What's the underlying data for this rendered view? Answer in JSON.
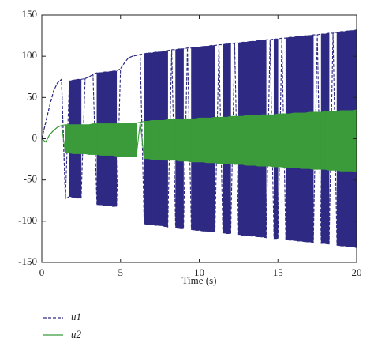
{
  "chart_data": {
    "type": "band-line",
    "xlabel": "Time (s)",
    "legend": "below",
    "xlim": [
      0,
      20
    ],
    "xticks": [
      0,
      5,
      10,
      15,
      20
    ],
    "ylim": [
      -150,
      150
    ],
    "yticks": [
      -150,
      -100,
      -50,
      0,
      50,
      100,
      150
    ],
    "x": [
      0,
      0.25,
      0.5,
      0.75,
      1,
      1.25,
      1.5,
      1.75,
      2,
      2.25,
      2.5,
      2.75,
      3,
      3.25,
      3.5,
      3.75,
      4,
      4.25,
      4.5,
      4.75,
      5,
      5.25,
      5.5,
      5.75,
      6,
      6.25,
      6.5,
      6.75,
      7,
      7.25,
      7.5,
      7.75,
      8,
      8.25,
      8.5,
      8.75,
      9,
      9.25,
      9.5,
      9.75,
      10,
      10.25,
      10.5,
      10.75,
      11,
      11.25,
      11.5,
      11.75,
      12,
      12.25,
      12.5,
      12.75,
      13,
      13.25,
      13.5,
      13.75,
      14,
      14.25,
      14.5,
      14.75,
      15,
      15.25,
      15.5,
      15.75,
      16,
      16.25,
      16.5,
      16.75,
      17,
      17.25,
      17.5,
      17.75,
      18,
      18.25,
      18.5,
      18.75,
      19,
      19.25,
      19.5,
      19.75,
      20
    ],
    "series": [
      {
        "name": "u1",
        "color": "#2e2a84",
        "dashed": true,
        "upper": [
          0,
          20,
          40,
          58,
          68,
          72,
          -73,
          70,
          71,
          72,
          72,
          73,
          75,
          78,
          80,
          80,
          81,
          81,
          82,
          82,
          85,
          92,
          98,
          100,
          101,
          102,
          103,
          104,
          104,
          105,
          105,
          106,
          107,
          108,
          108,
          109,
          109,
          110,
          110,
          111,
          111,
          112,
          112,
          113,
          113,
          114,
          114,
          115,
          115,
          116,
          116,
          117,
          117,
          118,
          118,
          119,
          119,
          120,
          120,
          121,
          121,
          122,
          122,
          123,
          123,
          124,
          124,
          125,
          125,
          126,
          126,
          127,
          127,
          128,
          128,
          129,
          130,
          130,
          131,
          131,
          132
        ],
        "lower": [
          0,
          20,
          40,
          58,
          68,
          72,
          -73,
          -70,
          -71,
          -72,
          -72,
          73,
          75,
          78,
          -80,
          -80,
          -81,
          -81,
          -82,
          -82,
          85,
          92,
          98,
          100,
          101,
          102,
          -103,
          -104,
          -104,
          -105,
          -105,
          -106,
          -107,
          108,
          -108,
          -109,
          -109,
          110,
          -110,
          -111,
          -111,
          -112,
          -112,
          -113,
          -113,
          114,
          -114,
          -115,
          -115,
          116,
          -116,
          -117,
          -117,
          -118,
          -118,
          -119,
          -119,
          -120,
          120,
          -121,
          -121,
          122,
          -122,
          -123,
          -123,
          -124,
          -124,
          -125,
          -125,
          -126,
          126,
          -127,
          -127,
          -128,
          128,
          -129,
          -130,
          -130,
          -131,
          -131,
          -132
        ]
      },
      {
        "name": "u2",
        "color": "#3b9b3b",
        "dashed": false,
        "upper": [
          0,
          -4,
          5,
          10,
          14,
          16,
          17,
          17,
          17,
          17,
          17,
          17,
          17,
          18,
          18,
          18,
          18,
          18,
          18,
          18,
          18,
          19,
          19,
          19,
          19,
          20,
          21,
          21,
          22,
          22,
          22,
          22,
          23,
          23,
          23,
          23,
          24,
          24,
          24,
          24,
          25,
          25,
          25,
          25,
          26,
          26,
          26,
          26,
          27,
          27,
          27,
          27,
          28,
          28,
          28,
          28,
          29,
          29,
          29,
          29,
          30,
          30,
          30,
          30,
          31,
          31,
          31,
          31,
          32,
          32,
          32,
          32,
          33,
          33,
          33,
          33,
          34,
          34,
          34,
          34,
          35
        ],
        "lower": [
          0,
          -4,
          5,
          10,
          14,
          16,
          -17,
          -17,
          -18,
          -18,
          -18,
          -18,
          -19,
          -19,
          -19,
          -20,
          -20,
          -20,
          -20,
          -21,
          -21,
          -21,
          -22,
          -22,
          -22,
          20,
          -24,
          -24,
          -25,
          -25,
          -25,
          -26,
          -26,
          -26,
          -26,
          -27,
          -27,
          -27,
          -28,
          -28,
          -28,
          -28,
          -29,
          -29,
          -29,
          -30,
          -30,
          -30,
          -30,
          -31,
          -31,
          -31,
          -32,
          -32,
          -32,
          -33,
          -33,
          -33,
          -33,
          -34,
          -34,
          -34,
          -35,
          -35,
          -35,
          -35,
          -36,
          -36,
          -36,
          -37,
          -37,
          -37,
          -37,
          -38,
          -38,
          -38,
          -39,
          -39,
          -39,
          -39,
          -40
        ]
      }
    ]
  }
}
